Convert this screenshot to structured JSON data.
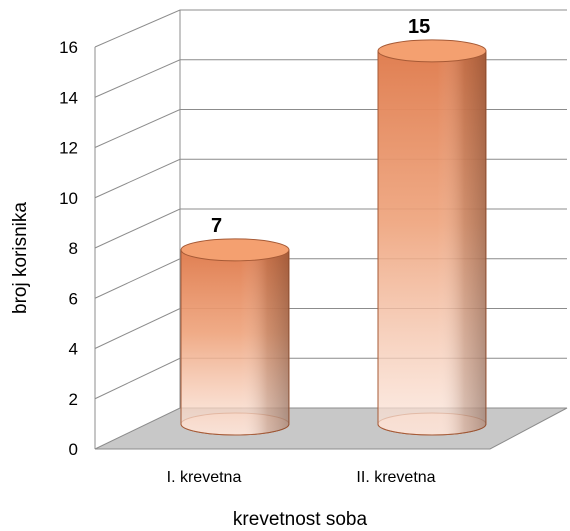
{
  "chart_data": {
    "type": "bar",
    "style": "3d-cylinder",
    "categories": [
      "I. krevetna",
      "II. krevetna"
    ],
    "values": [
      7,
      15
    ],
    "data_labels": [
      "7",
      "15"
    ],
    "xlabel": "krevetnost soba",
    "ylabel": "broj korisnika",
    "ylim": [
      0,
      16
    ],
    "yticks": [
      "0",
      "2",
      "4",
      "6",
      "8",
      "10",
      "12",
      "14",
      "16"
    ],
    "grid": true,
    "legend": false,
    "colors": {
      "bar_top": "#f4a070",
      "bar_body": "#e38b5e",
      "floor": "#c8c8c8"
    }
  }
}
